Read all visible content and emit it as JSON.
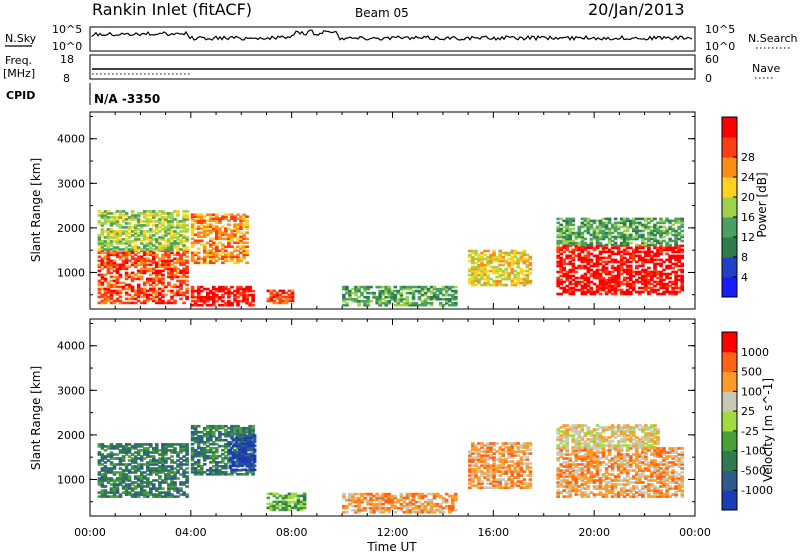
{
  "header": {
    "title": "Rankin Inlet (fitACF)",
    "beam": "Beam 05",
    "date": "20/Jan/2013"
  },
  "top_panels": {
    "nsky_label": "N.Sky",
    "nsearch_label": "N.Search",
    "nsky_ticks": [
      "10^5",
      "10^0"
    ],
    "nsearch_ticks": [
      "10^5",
      "10^0"
    ],
    "freq_label_1": "Freq.",
    "freq_label_2": "[MHz]",
    "freq_ticks": [
      "18",
      "8"
    ],
    "nave_label": "Nave",
    "nave_ticks": [
      "60",
      "0"
    ],
    "cpid_label": "CPID",
    "cpid_value": "N/A -3350"
  },
  "chart_data": [
    {
      "type": "heatmap",
      "title": "",
      "xlabel": "",
      "ylabel": "Slant Range [km]",
      "xlim": [
        0,
        24
      ],
      "ylim": [
        180,
        4600
      ],
      "y_ticks": [
        1000,
        2000,
        3000,
        4000
      ],
      "colorbar": {
        "label": "Power [dB]",
        "ticks": [
          "4",
          "8",
          "12",
          "16",
          "20",
          "24",
          "28"
        ],
        "colors": [
          "#1a1aff",
          "#2040c8",
          "#2e7c4e",
          "#4aa060",
          "#9ed24a",
          "#ffd21e",
          "#ff8c14",
          "#ff3c14",
          "#ff0000"
        ]
      },
      "regions": [
        {
          "t0": 0.3,
          "t1": 3.8,
          "r0": 300,
          "r1": 1500,
          "level": 7
        },
        {
          "t0": 0.3,
          "t1": 3.8,
          "r0": 1500,
          "r1": 2400,
          "level": 4
        },
        {
          "t0": 4.0,
          "t1": 6.2,
          "r0": 1200,
          "r1": 2300,
          "level": 6
        },
        {
          "t0": 4.0,
          "t1": 6.5,
          "r0": 250,
          "r1": 700,
          "level": 8
        },
        {
          "t0": 7.0,
          "t1": 8.0,
          "r0": 300,
          "r1": 600,
          "level": 7
        },
        {
          "t0": 10.0,
          "t1": 14.5,
          "r0": 250,
          "r1": 700,
          "level": 3
        },
        {
          "t0": 15.0,
          "t1": 17.5,
          "r0": 700,
          "r1": 1500,
          "level": 5
        },
        {
          "t0": 18.5,
          "t1": 23.5,
          "r0": 500,
          "r1": 1600,
          "level": 8
        },
        {
          "t0": 18.5,
          "t1": 23.5,
          "r0": 1600,
          "r1": 2200,
          "level": 3
        }
      ]
    },
    {
      "type": "heatmap",
      "title": "",
      "xlabel": "Time UT",
      "ylabel": "Slant Range [km]",
      "xlim": [
        0,
        24
      ],
      "ylim": [
        180,
        4600
      ],
      "y_ticks": [
        1000,
        2000,
        3000,
        4000
      ],
      "x_ticks": [
        "00:00",
        "04:00",
        "08:00",
        "12:00",
        "16:00",
        "20:00",
        "00:00"
      ],
      "colorbar": {
        "label": "Velocity [m s^-1]",
        "ticks": [
          "1000",
          "500",
          "100",
          "25",
          "-25",
          "-100",
          "-500",
          "-1000"
        ],
        "colors": [
          "#1a3cb4",
          "#2e5a8c",
          "#2e7c4e",
          "#4aa038",
          "#a0dc3c",
          "#c8c8b4",
          "#ff9a28",
          "#ff6414",
          "#ff0000"
        ]
      },
      "regions": [
        {
          "t0": 0.3,
          "t1": 3.8,
          "r0": 600,
          "r1": 1800,
          "level": 2
        },
        {
          "t0": 4.0,
          "t1": 6.5,
          "r0": 1100,
          "r1": 2200,
          "level": 2
        },
        {
          "t0": 5.5,
          "t1": 6.5,
          "r0": 1200,
          "r1": 2000,
          "level": 0
        },
        {
          "t0": 7.0,
          "t1": 8.5,
          "r0": 300,
          "r1": 700,
          "level": 3
        },
        {
          "t0": 10.0,
          "t1": 14.5,
          "r0": 250,
          "r1": 700,
          "level": 6
        },
        {
          "t0": 15.0,
          "t1": 17.5,
          "r0": 800,
          "r1": 1800,
          "level": 6
        },
        {
          "t0": 18.5,
          "t1": 23.5,
          "r0": 600,
          "r1": 1700,
          "level": 6
        },
        {
          "t0": 18.5,
          "t1": 22.5,
          "r0": 1700,
          "r1": 2200,
          "level": 5
        }
      ]
    }
  ]
}
